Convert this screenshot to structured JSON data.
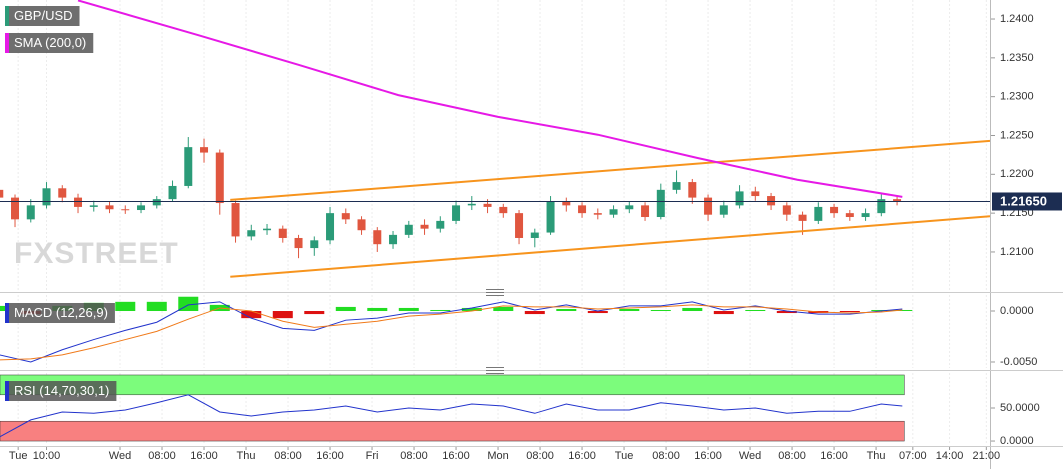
{
  "chart_data": [
    {
      "type": "candlestick",
      "name": "GBP/USD",
      "color_up": "#2b9b78",
      "color_down": "#e0563f",
      "x": [
        1,
        4,
        7,
        10,
        13,
        16,
        19,
        22,
        25,
        28,
        31,
        34,
        37,
        40,
        43,
        46,
        49,
        52,
        55,
        58,
        61,
        64,
        67,
        70,
        73,
        76,
        79,
        82,
        85,
        88,
        91,
        94,
        97,
        100,
        103,
        106,
        109,
        112,
        115,
        118,
        121,
        124,
        127,
        130,
        133,
        136,
        139,
        142,
        145,
        148,
        151,
        154,
        157,
        160,
        163,
        166,
        169,
        172
      ],
      "open": [
        1.218,
        1.217,
        1.2142,
        1.216,
        1.2182,
        1.217,
        1.2158,
        1.216,
        1.2155,
        1.2154,
        1.216,
        1.2168,
        1.2185,
        1.2235,
        1.2228,
        1.2163,
        1.212,
        1.2128,
        1.213,
        1.2118,
        1.2105,
        1.2115,
        1.215,
        1.2142,
        1.2128,
        1.211,
        1.2122,
        1.2135,
        1.213,
        1.214,
        1.216,
        1.2162,
        1.2158,
        1.215,
        1.2118,
        1.2125,
        1.2165,
        1.216,
        1.215,
        1.2148,
        1.2155,
        1.216,
        1.2145,
        1.218,
        1.219,
        1.217,
        1.2148,
        1.216,
        1.2178,
        1.2172,
        1.216,
        1.2148,
        1.214,
        1.2158,
        1.215,
        1.2145,
        1.215,
        1.2168
      ],
      "high": [
        1.2188,
        1.2174,
        1.2168,
        1.219,
        1.2186,
        1.2175,
        1.2166,
        1.2165,
        1.216,
        1.2164,
        1.2172,
        1.2192,
        1.2248,
        1.2246,
        1.2232,
        1.2166,
        1.2135,
        1.2136,
        1.2134,
        1.2122,
        1.212,
        1.2158,
        1.2156,
        1.2146,
        1.2132,
        1.2127,
        1.214,
        1.2142,
        1.2146,
        1.2166,
        1.2172,
        1.2168,
        1.2162,
        1.2154,
        1.213,
        1.2172,
        1.217,
        1.2164,
        1.2156,
        1.216,
        1.2165,
        1.2164,
        1.2188,
        1.2205,
        1.2194,
        1.2174,
        1.2166,
        1.2186,
        1.2184,
        1.2176,
        1.2164,
        1.2152,
        1.2164,
        1.2162,
        1.2154,
        1.2156,
        1.2174,
        1.2172
      ],
      "low": [
        1.2165,
        1.2132,
        1.2138,
        1.2156,
        1.2164,
        1.215,
        1.2152,
        1.215,
        1.2149,
        1.215,
        1.2156,
        1.2165,
        1.2182,
        1.2215,
        1.2148,
        1.2112,
        1.2115,
        1.2122,
        1.2112,
        1.2092,
        1.2095,
        1.211,
        1.2136,
        1.2122,
        1.21,
        1.2104,
        1.2118,
        1.2122,
        1.2125,
        1.2136,
        1.2154,
        1.215,
        1.2144,
        1.211,
        1.2106,
        1.2122,
        1.2152,
        1.2144,
        1.2142,
        1.2144,
        1.215,
        1.214,
        1.2142,
        1.2175,
        1.2162,
        1.214,
        1.2144,
        1.2156,
        1.2166,
        1.2154,
        1.214,
        1.2122,
        1.2136,
        1.2144,
        1.214,
        1.214,
        1.2146,
        1.216
      ],
      "close": [
        1.217,
        1.2142,
        1.216,
        1.2182,
        1.217,
        1.2158,
        1.216,
        1.2155,
        1.2154,
        1.216,
        1.2168,
        1.2185,
        1.2235,
        1.2228,
        1.2163,
        1.212,
        1.2128,
        1.213,
        1.2118,
        1.2105,
        1.2115,
        1.215,
        1.2142,
        1.2128,
        1.211,
        1.2122,
        1.2135,
        1.213,
        1.214,
        1.216,
        1.2162,
        1.2158,
        1.215,
        1.2118,
        1.2125,
        1.2165,
        1.216,
        1.215,
        1.2148,
        1.2155,
        1.216,
        1.2145,
        1.218,
        1.219,
        1.217,
        1.2148,
        1.216,
        1.2178,
        1.2172,
        1.216,
        1.2148,
        1.214,
        1.2158,
        1.215,
        1.2145,
        1.215,
        1.2168,
        1.2165
      ],
      "xlim": [
        1.14,
        189.7
      ],
      "ylim": [
        1.2051,
        1.24245
      ],
      "yticks": [
        {
          "value": 1.21,
          "label": "1.2100"
        },
        {
          "value": 1.215,
          "label": "1.2150"
        },
        {
          "value": 1.22,
          "label": "1.2200"
        },
        {
          "value": 1.225,
          "label": "1.2250"
        },
        {
          "value": 1.23,
          "label": "1.2300"
        },
        {
          "value": 1.235,
          "label": "1.2350"
        },
        {
          "value": 1.24,
          "label": "1.2400"
        }
      ],
      "last_price": {
        "value": 1.2165,
        "label": "1.21650",
        "color": "#1c2d52"
      },
      "overlays": [
        {
          "name": "SMA (200,0)",
          "color": "#e619e6",
          "x": [
            16,
            39,
            58,
            77,
            96,
            115,
            134,
            153,
            173
          ],
          "values": [
            1.2424,
            1.2379,
            1.2341,
            1.2302,
            1.2274,
            1.2251,
            1.2221,
            1.2193,
            1.2171
          ]
        }
      ],
      "trendlines": [
        {
          "color": "#f7941d",
          "x": [
            45,
            189.7
          ],
          "values": [
            1.2167,
            1.2243
          ]
        },
        {
          "color": "#f7941d",
          "x": [
            45,
            189.7
          ],
          "values": [
            1.2068,
            1.2146
          ]
        }
      ],
      "watermark": "FXSTREET"
    },
    {
      "type": "indicator",
      "title": "MACD (12,26,9)",
      "title_color": "#2233cc",
      "x": [
        1,
        7,
        13,
        19,
        25,
        31,
        37,
        43,
        49,
        55,
        61,
        67,
        73,
        79,
        85,
        91,
        97,
        103,
        109,
        115,
        121,
        127,
        133,
        139,
        145,
        151,
        157,
        163,
        169,
        173
      ],
      "series": [
        {
          "kind": "histogram",
          "color": "#22dd22",
          "color_down": "#dd1111",
          "values": [
            0.0005,
            -0.0003,
            0.0005,
            0.0008,
            0.0009,
            0.0009,
            0.0014,
            0.0006,
            -0.0007,
            -0.0007,
            -0.0003,
            0.0004,
            0.0003,
            0.0003,
            0.0001,
            0.0003,
            0.0004,
            -0.0003,
            0.0002,
            -0.0002,
            0.0002,
            0.0001,
            0.0003,
            -0.0003,
            0.0001,
            -0.0002,
            -0.0002,
            -0.0001,
            0.0001,
            0.0001
          ]
        },
        {
          "kind": "line",
          "color": "#2233cc",
          "values": [
            -0.0043,
            -0.005,
            -0.0038,
            -0.0028,
            -0.0019,
            -0.0011,
            0.0006,
            0.0009,
            -0.0007,
            -0.0017,
            -0.0019,
            -0.0009,
            -0.0007,
            -0.0002,
            -0.0002,
            0.0003,
            0.0009,
            0.0001,
            0.0006,
            0.0,
            0.0005,
            0.0005,
            0.0009,
            0.0001,
            0.0005,
            0.0,
            -0.0003,
            -0.0003,
            0.0,
            0.0002
          ]
        },
        {
          "kind": "line",
          "color": "#f07a1a",
          "values": [
            -0.0048,
            -0.0047,
            -0.0043,
            -0.0036,
            -0.0028,
            -0.002,
            -0.0008,
            0.0003,
            0.0,
            -0.001,
            -0.0016,
            -0.0013,
            -0.001,
            -0.0005,
            -0.0003,
            0.0,
            0.0005,
            0.0004,
            0.0004,
            0.0002,
            0.0003,
            0.0004,
            0.0006,
            0.0004,
            0.0004,
            0.0002,
            -0.0001,
            -0.0002,
            -0.0001,
            0.0001
          ]
        }
      ],
      "xlim": [
        1.14,
        189.7
      ],
      "ylim": [
        -0.00559,
        0.00157
      ],
      "yticks": [
        {
          "value": 0,
          "label": "0.0000"
        },
        {
          "value": -0.005,
          "label": "-0.0050"
        }
      ]
    },
    {
      "type": "indicator",
      "title": "RSI (14,70,30,1)",
      "title_color": "#2233cc",
      "x": [
        1,
        7,
        13,
        19,
        25,
        31,
        37,
        43,
        49,
        55,
        61,
        67,
        73,
        79,
        85,
        91,
        97,
        103,
        109,
        115,
        121,
        127,
        133,
        139,
        145,
        151,
        157,
        163,
        169,
        173
      ],
      "series": [
        {
          "kind": "line",
          "color": "#2233cc",
          "values": [
            6,
            32,
            44,
            42,
            47,
            58,
            70,
            44,
            38,
            44,
            47,
            53,
            44,
            50,
            47,
            56,
            53,
            42,
            56,
            47,
            47,
            58,
            53,
            47,
            50,
            42,
            45,
            45,
            56,
            53
          ]
        }
      ],
      "bands": [
        {
          "from": 70,
          "to": 100,
          "color": "#7cfc7c"
        },
        {
          "from": 0,
          "to": 30,
          "color": "#f88080"
        }
      ],
      "xlim": [
        1.14,
        189.7
      ],
      "ylim": [
        -6,
        103
      ],
      "yticks": [
        {
          "value": 50,
          "label": "50.0000"
        },
        {
          "value": 0,
          "label": "0.0000"
        }
      ],
      "xticks": [
        {
          "value": 4.6,
          "label": "Tue"
        },
        {
          "value": 10,
          "label": "10:00"
        },
        {
          "value": 24,
          "label": "Wed"
        },
        {
          "value": 32,
          "label": "08:00"
        },
        {
          "value": 40,
          "label": "16:00"
        },
        {
          "value": 48,
          "label": "Thu"
        },
        {
          "value": 56,
          "label": "08:00"
        },
        {
          "value": 64,
          "label": "16:00"
        },
        {
          "value": 72,
          "label": "Fri"
        },
        {
          "value": 80,
          "label": "08:00"
        },
        {
          "value": 88,
          "label": "16:00"
        },
        {
          "value": 96,
          "label": "Mon"
        },
        {
          "value": 104,
          "label": "08:00"
        },
        {
          "value": 112,
          "label": "16:00"
        },
        {
          "value": 120,
          "label": "Tue"
        },
        {
          "value": 128,
          "label": "08:00"
        },
        {
          "value": 136,
          "label": "16:00"
        },
        {
          "value": 144,
          "label": "Wed"
        },
        {
          "value": 152,
          "label": "08:00"
        },
        {
          "value": 160,
          "label": "16:00"
        },
        {
          "value": 168,
          "label": "Thu"
        },
        {
          "value": 175,
          "label": "07:00"
        },
        {
          "value": 182,
          "label": "14:00"
        },
        {
          "value": 189,
          "label": "21:00"
        }
      ]
    }
  ]
}
